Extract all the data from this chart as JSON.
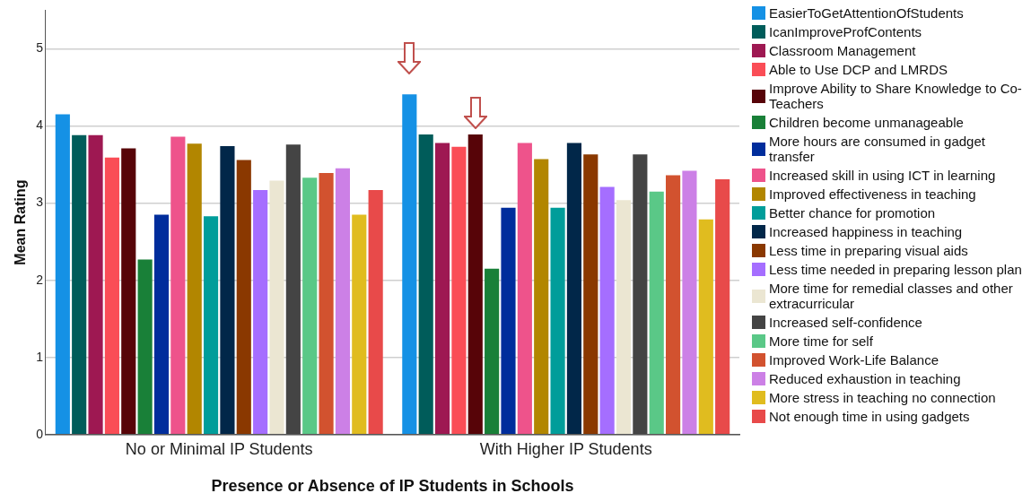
{
  "chart_data": {
    "type": "bar",
    "xlabel": "Presence or Absence of IP Students in Schools",
    "ylabel": "Mean Rating",
    "categories": [
      "No or Minimal IP Students",
      "With Higher IP Students"
    ],
    "ylim": [
      0,
      5.5
    ],
    "yticks": [
      0,
      1,
      2,
      3,
      4,
      5
    ],
    "grid": "y",
    "legend": "right",
    "series": [
      {
        "name": "EasierToGetAttentionOfStudents",
        "color": "#1591e5",
        "values": [
          4.15,
          4.41
        ]
      },
      {
        "name": "IcanImproveProfContents",
        "color": "#005c5a",
        "values": [
          3.88,
          3.89
        ]
      },
      {
        "name": "Classroom Management",
        "color": "#9e1852",
        "values": [
          3.88,
          3.78
        ]
      },
      {
        "name": "Able to Use DCP and LMRDS",
        "color": "#fa4d56",
        "values": [
          3.59,
          3.73
        ]
      },
      {
        "name": "Improve Ability to Share Knowledge to Co-Teachers",
        "color": "#570408",
        "values": [
          3.71,
          3.89
        ]
      },
      {
        "name": "Children become unmanageable",
        "color": "#198038",
        "values": [
          2.27,
          2.15
        ]
      },
      {
        "name": "More hours are consumed in gadget transfer",
        "color": "#002d9c",
        "values": [
          2.85,
          2.94
        ]
      },
      {
        "name": "Increased skill in using ICT in learning",
        "color": "#ee538b",
        "values": [
          3.86,
          3.78
        ]
      },
      {
        "name": "Improved effectiveness in teaching",
        "color": "#b28600",
        "values": [
          3.77,
          3.57
        ]
      },
      {
        "name": "Better chance for promotion",
        "color": "#009d9a",
        "values": [
          2.83,
          2.94
        ]
      },
      {
        "name": "Increased happiness in teaching",
        "color": "#012749",
        "values": [
          3.74,
          3.78
        ]
      },
      {
        "name": "Less time in preparing visual aids",
        "color": "#8a3800",
        "values": [
          3.56,
          3.63
        ]
      },
      {
        "name": "Less time needed in preparing lesson plan",
        "color": "#a56eff",
        "values": [
          3.17,
          3.21
        ]
      },
      {
        "name": "More time for remedial classes and other extracurricular",
        "color": "#ebe6d2",
        "values": [
          3.29,
          3.04
        ]
      },
      {
        "name": "Increased self-confidence",
        "color": "#444444",
        "values": [
          3.76,
          3.63
        ]
      },
      {
        "name": "More time for self",
        "color": "#5ac887",
        "values": [
          3.33,
          3.15
        ]
      },
      {
        "name": "Improved Work-Life Balance",
        "color": "#d2522f",
        "values": [
          3.39,
          3.36
        ]
      },
      {
        "name": "Reduced exhaustion in teaching",
        "color": "#cc80e6",
        "values": [
          3.45,
          3.42
        ]
      },
      {
        "name": "More stress in teaching no connection",
        "color": "#e0bc1f",
        "values": [
          2.85,
          2.79
        ]
      },
      {
        "name": "Not enough time in using gadgets",
        "color": "#e84a4a",
        "values": [
          3.17,
          3.31
        ]
      }
    ]
  }
}
